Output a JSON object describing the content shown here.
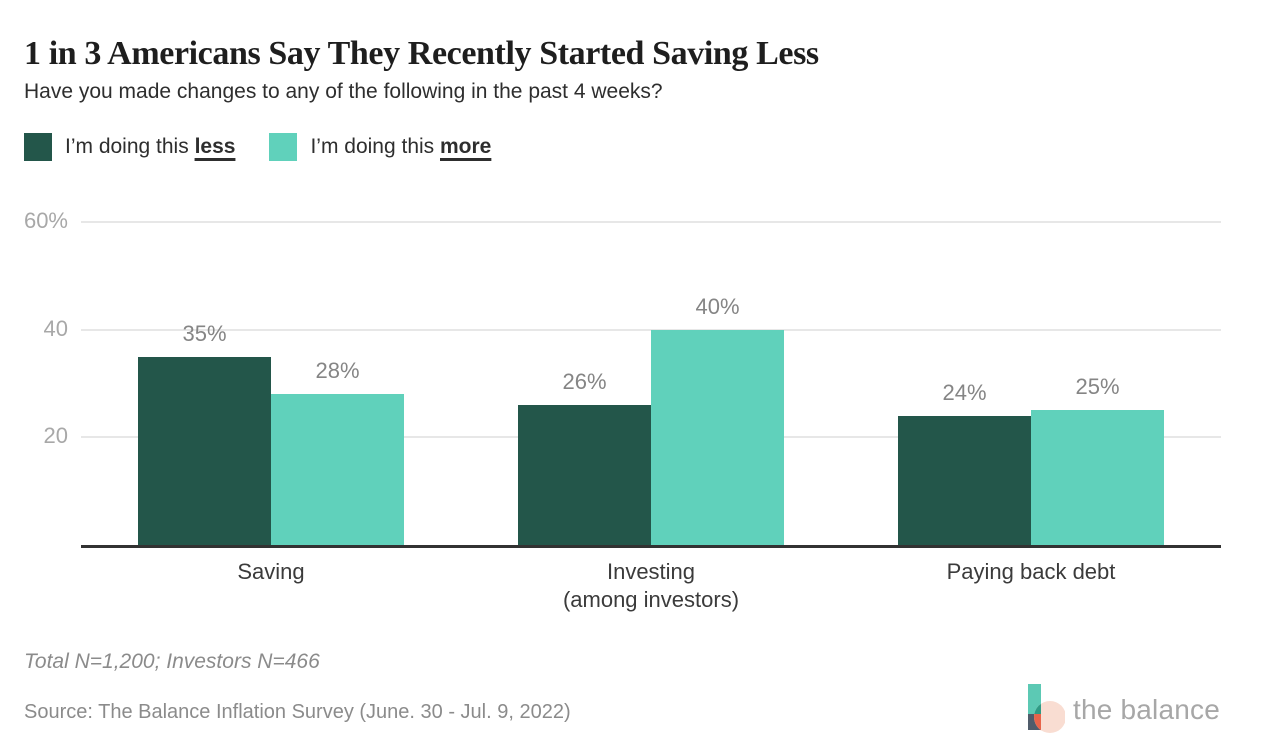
{
  "page": {
    "title": "1 in 3 Americans Say They Recently Started Saving Less",
    "subtitle": "Have you made changes to any of the following in the past 4 weeks?"
  },
  "legend": {
    "items": [
      {
        "prefix": "I’m doing this ",
        "emphasis": "less",
        "color": "#23564a"
      },
      {
        "prefix": "I’m doing this ",
        "emphasis": "more",
        "color": "#60d1bb"
      }
    ]
  },
  "chart_data": {
    "type": "bar",
    "categories": [
      "Saving",
      "Investing\n(among investors)",
      "Paying back debt"
    ],
    "series": [
      {
        "name": "I’m doing this less",
        "color": "#23564a",
        "values": [
          35,
          26,
          24
        ]
      },
      {
        "name": "I’m doing this more",
        "color": "#60d1bb",
        "values": [
          28,
          40,
          25
        ]
      }
    ],
    "value_suffix": "%",
    "yticks": [
      {
        "value": 20,
        "label": "20"
      },
      {
        "value": 40,
        "label": "40"
      },
      {
        "value": 60,
        "label": "60%"
      }
    ],
    "ylim": [
      0,
      66
    ],
    "grid": "horizontal",
    "legend_position": "top-left",
    "xlabel": "",
    "ylabel": ""
  },
  "footnotes": {
    "sample": "Total N=1,200; Investors N=466",
    "source": "Source: The Balance Inflation Survey (June. 30 - Jul. 9, 2022)"
  },
  "branding": {
    "logo_text": "the balance",
    "logo_colors": {
      "bar_teal": "#5cc9b4",
      "bar_slate": "#505c6b",
      "circle_peach": "#f9ddd2",
      "overlap_teal": "#2f9b85",
      "overlap_orange": "#e8644a"
    }
  }
}
